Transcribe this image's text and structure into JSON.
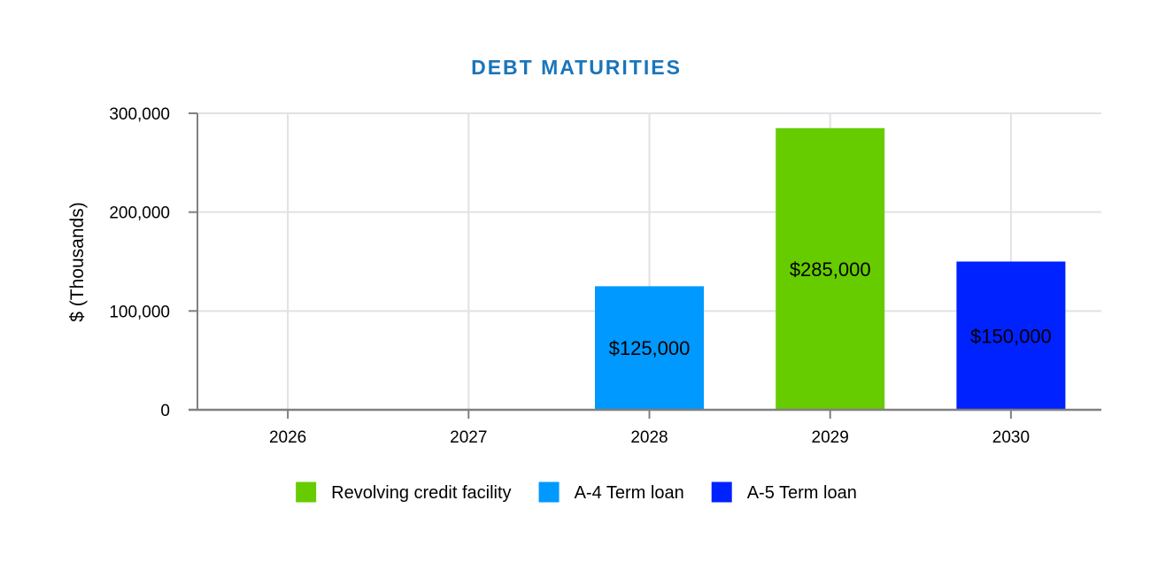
{
  "chart_data": {
    "type": "bar",
    "title": "DEBT MATURITIES",
    "xlabel": "",
    "ylabel": "$ (Thousands)",
    "categories": [
      "2026",
      "2027",
      "2028",
      "2029",
      "2030"
    ],
    "ylim": [
      0,
      300000
    ],
    "yticks": [
      0,
      100000,
      200000,
      300000
    ],
    "ytick_labels": [
      "0",
      "100,000",
      "200,000",
      "300,000"
    ],
    "grid": true,
    "legend_position": "bottom",
    "series": [
      {
        "name": "Revolving credit facility",
        "color": "#66cc00",
        "values": [
          0,
          0,
          0,
          285000,
          0
        ]
      },
      {
        "name": "A-4 Term loan",
        "color": "#0099ff",
        "values": [
          0,
          0,
          125000,
          0,
          0
        ]
      },
      {
        "name": "A-5 Term loan",
        "color": "#0022ff",
        "values": [
          0,
          0,
          0,
          0,
          150000
        ]
      }
    ],
    "data_labels": [
      {
        "category": "2028",
        "series": "A-4 Term loan",
        "text": "$125,000"
      },
      {
        "category": "2029",
        "series": "Revolving credit facility",
        "text": "$285,000"
      },
      {
        "category": "2030",
        "series": "A-5 Term loan",
        "text": "$150,000"
      }
    ],
    "colors": {
      "title": "#1a75bb",
      "grid": "#e2e2e2",
      "axis": "#808080"
    }
  }
}
